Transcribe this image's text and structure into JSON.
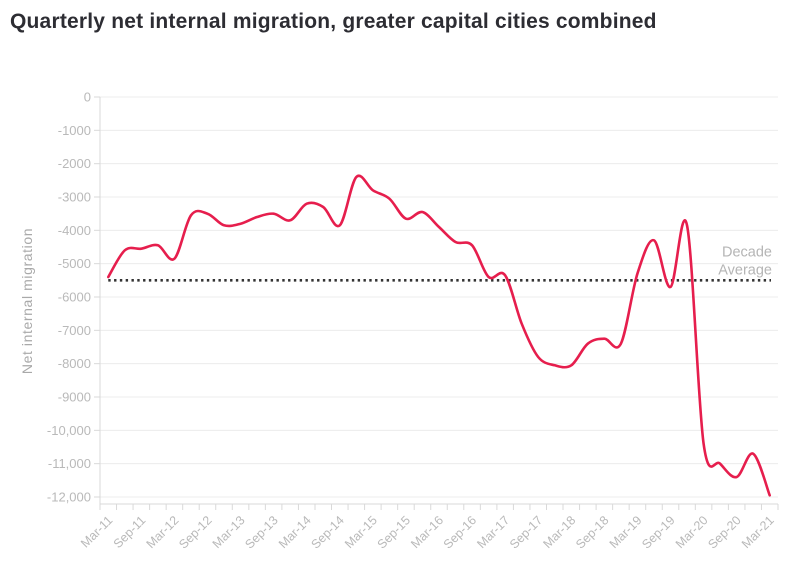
{
  "page": {
    "background": "#ffffff"
  },
  "chart_data": {
    "type": "line",
    "title": "Quarterly net internal migration, greater capital cities combined",
    "ylabel": "Net internal migration",
    "xlabel": "",
    "categories": [
      "Mar-11",
      "Jun-11",
      "Sep-11",
      "Dec-11",
      "Mar-12",
      "Jun-12",
      "Sep-12",
      "Dec-12",
      "Mar-13",
      "Jun-13",
      "Sep-13",
      "Dec-13",
      "Mar-14",
      "Jun-14",
      "Sep-14",
      "Dec-14",
      "Mar-15",
      "Jun-15",
      "Sep-15",
      "Dec-15",
      "Mar-16",
      "Jun-16",
      "Sep-16",
      "Dec-16",
      "Mar-17",
      "Jun-17",
      "Sep-17",
      "Dec-17",
      "Mar-18",
      "Jun-18",
      "Sep-18",
      "Dec-18",
      "Mar-19",
      "Jun-19",
      "Sep-19",
      "Dec-19",
      "Mar-20",
      "Jun-20",
      "Sep-20",
      "Dec-20",
      "Mar-21"
    ],
    "x_label_every": 2,
    "x_tick_labels": [
      "Mar-11",
      "Sep-11",
      "Mar-12",
      "Sep-12",
      "Mar-13",
      "Sep-13",
      "Mar-14",
      "Sep-14",
      "Mar-15",
      "Sep-15",
      "Mar-16",
      "Sep-16",
      "Mar-17",
      "Sep-17",
      "Mar-18",
      "Sep-18",
      "Mar-19",
      "Sep-19",
      "Mar-20",
      "Sep-20",
      "Mar-21"
    ],
    "series": [
      {
        "name": "Quarterly net internal migration",
        "values": [
          -5400,
          -4600,
          -4550,
          -4450,
          -4850,
          -3550,
          -3500,
          -3850,
          -3800,
          -3600,
          -3500,
          -3700,
          -3200,
          -3300,
          -3850,
          -2400,
          -2800,
          -3050,
          -3650,
          -3450,
          -3900,
          -4350,
          -4450,
          -5400,
          -5350,
          -6800,
          -7800,
          -8050,
          -8050,
          -7400,
          -7250,
          -7400,
          -5300,
          -4300,
          -5700,
          -3850,
          -10400,
          -11000,
          -11400,
          -10700,
          -11950
        ]
      }
    ],
    "reference_line": {
      "value": -5500,
      "label": "Decade Average",
      "label_lines": [
        "Decade",
        "Average"
      ],
      "style": "dotted"
    },
    "ylim": [
      -12000,
      0
    ],
    "y_ticks": [
      0,
      -1000,
      -2000,
      -3000,
      -4000,
      -5000,
      -6000,
      -7000,
      -8000,
      -9000,
      -10000,
      -11000,
      -12000
    ],
    "y_tick_labels": [
      "0",
      "-1000",
      "-2000",
      "-3000",
      "-4000",
      "-5000",
      "-6000",
      "-7000",
      "-8000",
      "-9000",
      "-10,000",
      "-11,000",
      "-12,000"
    ],
    "grid": true,
    "legend": false
  },
  "colors": {
    "line": "#e61e4d",
    "grid": "#ececec",
    "axis": "#d9d9d9",
    "tick": "#d9d9d9",
    "tick_label": "#b9b9b9",
    "axis_title": "#a9a9a9",
    "title": "#2d2d33",
    "reference_line": "#333333",
    "reference_label": "#b5b5b5",
    "background": "#ffffff"
  }
}
